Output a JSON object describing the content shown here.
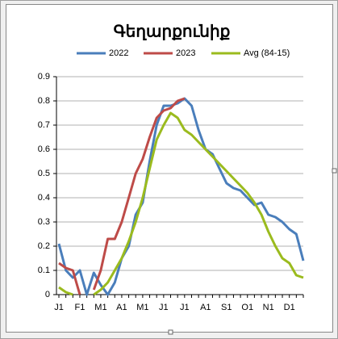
{
  "chart_data": {
    "type": "line",
    "title": "Գեղարքունիք",
    "categories": [
      "J1",
      null,
      null,
      "F1",
      null,
      null,
      "M1",
      null,
      null,
      "A1",
      null,
      null,
      "M1",
      null,
      null,
      "J1",
      null,
      null,
      "J1",
      null,
      null,
      "A1",
      null,
      null,
      "S1",
      null,
      null,
      "O1",
      null,
      null,
      "N1",
      null,
      null,
      "D1",
      null,
      null
    ],
    "series": [
      {
        "name": "2022",
        "color": "#4a7ebb",
        "values": [
          0.21,
          0.1,
          0.07,
          0.1,
          0.0,
          0.09,
          0.04,
          0.0,
          0.05,
          0.15,
          0.2,
          0.33,
          0.38,
          0.55,
          0.7,
          0.78,
          0.78,
          0.79,
          0.81,
          0.78,
          0.68,
          0.6,
          0.58,
          0.52,
          0.46,
          0.44,
          0.43,
          0.4,
          0.37,
          0.38,
          0.33,
          0.32,
          0.3,
          0.27,
          0.25,
          0.14
        ]
      },
      {
        "name": "2023",
        "color": "#be4b48",
        "values": [
          0.13,
          0.11,
          0.1,
          0.0,
          null,
          0.02,
          0.1,
          0.23,
          0.23,
          0.3,
          0.4,
          0.5,
          0.56,
          0.65,
          0.73,
          0.76,
          0.77,
          0.8,
          0.81,
          null,
          null,
          null,
          null,
          null,
          null,
          null,
          null,
          null,
          null,
          null,
          null,
          null,
          null,
          null,
          null,
          null
        ]
      },
      {
        "name": "Avg (84-15)",
        "color": "#9bbb1e",
        "values": [
          0.03,
          0.01,
          0.0,
          null,
          null,
          0.0,
          0.02,
          0.05,
          0.1,
          0.15,
          0.22,
          0.3,
          0.4,
          0.52,
          0.64,
          0.7,
          0.75,
          0.73,
          0.68,
          0.66,
          0.63,
          0.6,
          0.57,
          0.54,
          0.51,
          0.48,
          0.45,
          0.42,
          0.38,
          0.33,
          0.26,
          0.2,
          0.15,
          0.13,
          0.08,
          0.07
        ]
      }
    ],
    "ylim": [
      0,
      0.9
    ],
    "yticks": [
      0,
      0.1,
      0.2,
      0.3,
      0.4,
      0.5,
      0.6,
      0.7,
      0.8,
      0.9
    ],
    "grid": true,
    "legend": "top"
  }
}
